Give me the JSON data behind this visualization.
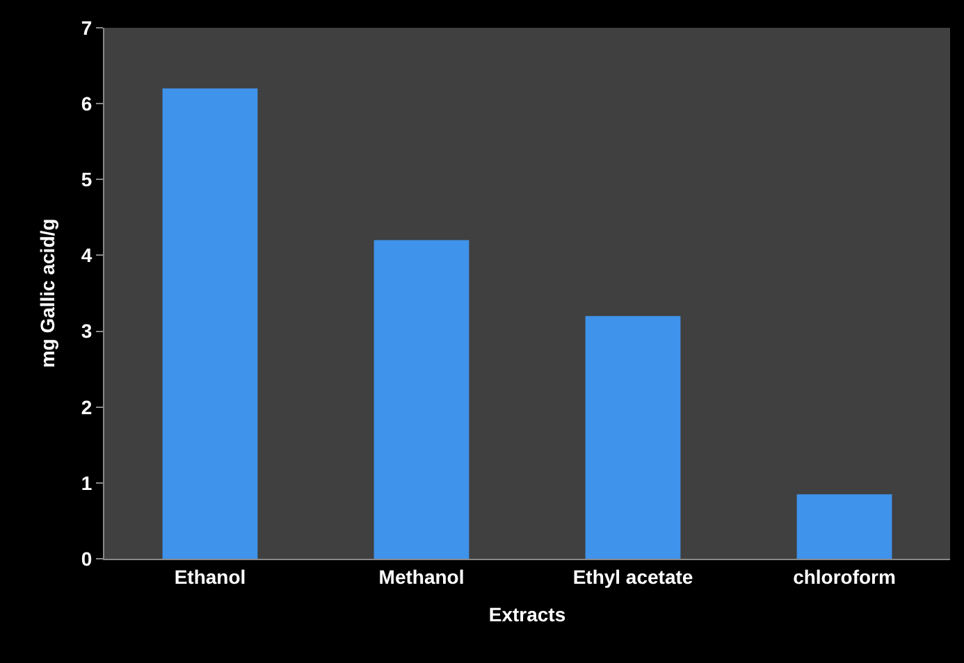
{
  "chart_data": {
    "type": "bar",
    "xlabel": "Extracts",
    "ylabel": "mg Gallic acid/g",
    "categories": [
      "Ethanol",
      "Methanol",
      "Ethyl acetate",
      "chloroform"
    ],
    "values": [
      6.2,
      4.2,
      3.2,
      0.85
    ],
    "color": "#3f93ea",
    "ylim": [
      0,
      7
    ],
    "yticks": [
      0,
      1,
      2,
      3,
      4,
      5,
      6,
      7
    ],
    "grid": false
  }
}
